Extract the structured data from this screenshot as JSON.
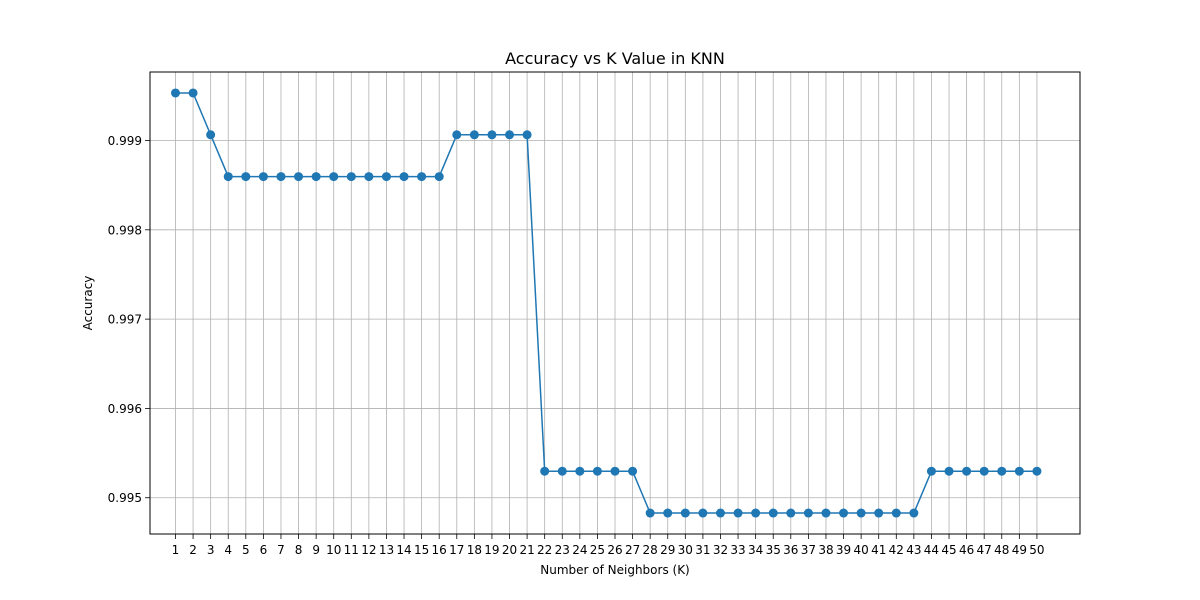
{
  "chart_data": {
    "type": "line",
    "title": "Accuracy vs K Value in KNN",
    "xlabel": "Number of Neighbors (K)",
    "ylabel": "Accuracy",
    "x": [
      1,
      2,
      3,
      4,
      5,
      6,
      7,
      8,
      9,
      10,
      11,
      12,
      13,
      14,
      15,
      16,
      17,
      18,
      19,
      20,
      21,
      22,
      23,
      24,
      25,
      26,
      27,
      28,
      29,
      30,
      31,
      32,
      33,
      34,
      35,
      36,
      37,
      38,
      39,
      40,
      41,
      42,
      43,
      44,
      45,
      46,
      47,
      48,
      49,
      50
    ],
    "series": [
      {
        "values": [
          0.999532,
          0.999532,
          0.999064,
          0.998596,
          0.998596,
          0.998596,
          0.998596,
          0.998596,
          0.998596,
          0.998596,
          0.998596,
          0.998596,
          0.998596,
          0.998596,
          0.998596,
          0.998596,
          0.999064,
          0.999064,
          0.999064,
          0.999064,
          0.999064,
          0.995297,
          0.995297,
          0.995297,
          0.995297,
          0.995297,
          0.995297,
          0.994829,
          0.994829,
          0.994829,
          0.994829,
          0.994829,
          0.994829,
          0.994829,
          0.994829,
          0.994829,
          0.994829,
          0.994829,
          0.994829,
          0.994829,
          0.994829,
          0.994829,
          0.994829,
          0.995297,
          0.995297,
          0.995297,
          0.995297,
          0.995297,
          0.995297,
          0.995297
        ],
        "color": "#1f77b4",
        "marker": "circle"
      }
    ],
    "xlim": [
      -0.45,
      52.45
    ],
    "ylim": [
      0.994594,
      0.999767
    ],
    "ytick_values": [
      0.995,
      0.996,
      0.997,
      0.998,
      0.999
    ],
    "ytick_labels": [
      "0.995",
      "0.996",
      "0.997",
      "0.998",
      "0.999"
    ],
    "grid": true,
    "legend": "none"
  }
}
